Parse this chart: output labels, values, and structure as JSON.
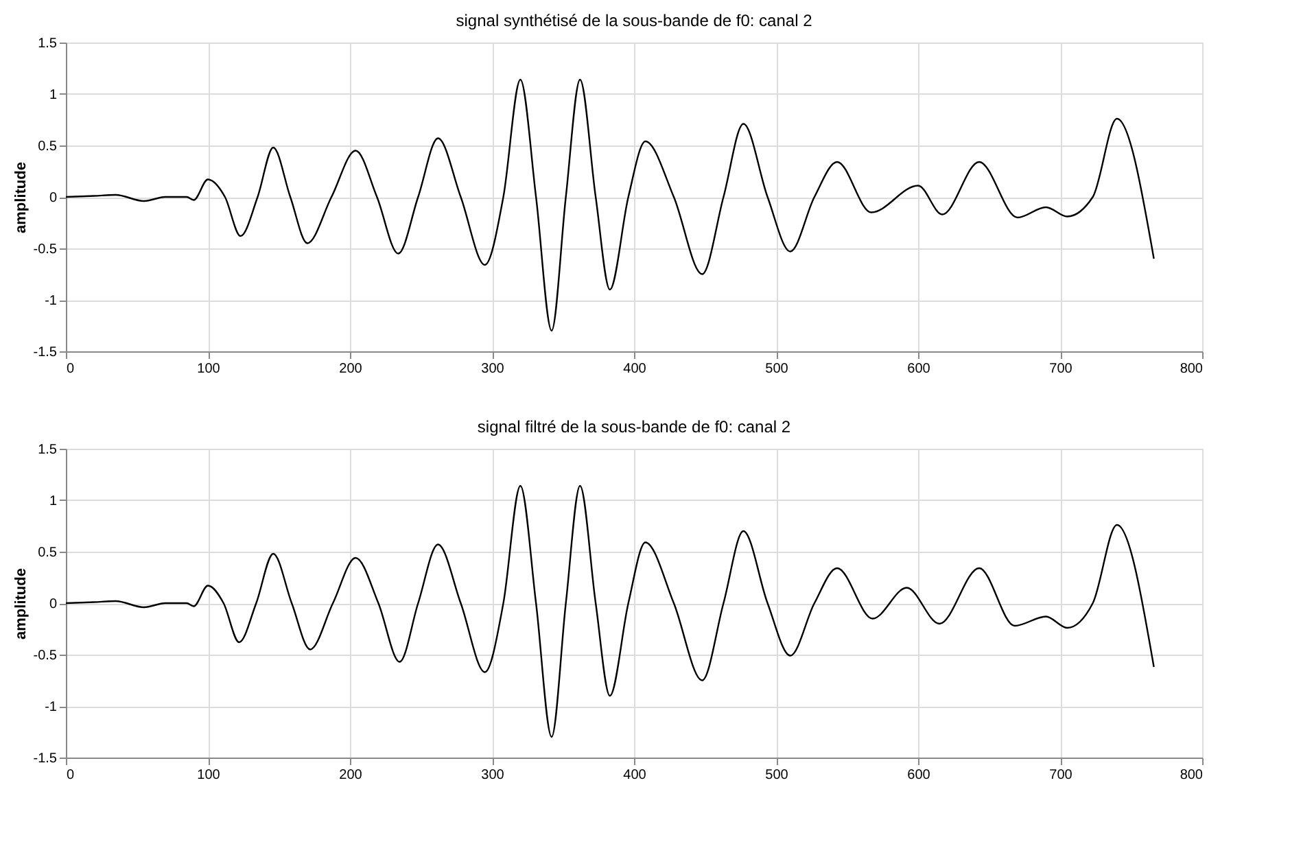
{
  "chart_data": [
    {
      "type": "line",
      "title": "signal synthétisé de la sous-bande de f0: canal 2",
      "ylabel": "amplitude",
      "xlim": [
        0,
        800
      ],
      "ylim": [
        -1.5,
        1.5
      ],
      "xticks": [
        0,
        100,
        200,
        300,
        400,
        500,
        600,
        700,
        800
      ],
      "yticks": [
        -1.5,
        -1,
        -0.5,
        0,
        0.5,
        1,
        1.5
      ],
      "grid": true,
      "x": [
        0,
        20,
        35,
        55,
        70,
        85,
        90,
        100,
        112,
        123,
        135,
        146,
        158,
        170,
        187,
        204,
        219,
        234,
        248,
        262,
        278,
        295,
        308,
        320,
        331,
        342,
        352,
        362,
        373,
        383,
        396,
        408,
        428,
        448,
        463,
        477,
        494,
        510,
        527,
        543,
        567,
        600,
        617,
        643,
        670,
        690,
        705,
        723,
        740,
        766
      ],
      "series": [
        {
          "color": "#000000",
          "values": [
            0,
            0.01,
            0.02,
            -0.04,
            0,
            0,
            -0.03,
            0.17,
            0,
            -0.38,
            0,
            0.48,
            0,
            -0.45,
            0,
            0.45,
            0,
            -0.55,
            0,
            0.57,
            0,
            -0.66,
            0,
            1.14,
            0,
            -1.3,
            0,
            1.14,
            0,
            -0.9,
            0,
            0.54,
            0,
            -0.75,
            0,
            0.71,
            0,
            -0.53,
            0,
            0.34,
            -0.15,
            0.11,
            -0.17,
            0.34,
            -0.2,
            -0.1,
            -0.19,
            0,
            0.76,
            -0.6
          ]
        }
      ]
    },
    {
      "type": "line",
      "title": "signal filtré de la sous-bande de f0: canal 2",
      "ylabel": "amplitude",
      "xlim": [
        0,
        800
      ],
      "ylim": [
        -1.5,
        1.5
      ],
      "xticks": [
        0,
        100,
        200,
        300,
        400,
        500,
        600,
        700,
        800
      ],
      "yticks": [
        -1.5,
        -1,
        -0.5,
        0,
        0.5,
        1,
        1.5
      ],
      "grid": true,
      "x": [
        0,
        20,
        35,
        55,
        70,
        85,
        90,
        100,
        111,
        122,
        134,
        146,
        159,
        172,
        188,
        204,
        220,
        235,
        248,
        262,
        278,
        295,
        308,
        320,
        331,
        342,
        352,
        362,
        373,
        383,
        396,
        408,
        428,
        448,
        463,
        477,
        494,
        510,
        527,
        543,
        568,
        592,
        615,
        643,
        668,
        690,
        705,
        723,
        740,
        766
      ],
      "series": [
        {
          "color": "#000000",
          "values": [
            0,
            0.01,
            0.02,
            -0.04,
            0,
            0,
            -0.03,
            0.17,
            0,
            -0.38,
            0,
            0.48,
            0,
            -0.45,
            0,
            0.44,
            0,
            -0.57,
            0,
            0.57,
            0,
            -0.67,
            0,
            1.14,
            0,
            -1.3,
            0,
            1.14,
            0,
            -0.9,
            0,
            0.59,
            0,
            -0.75,
            0,
            0.7,
            0,
            -0.51,
            0,
            0.34,
            -0.15,
            0.15,
            -0.2,
            0.34,
            -0.22,
            -0.13,
            -0.24,
            0,
            0.76,
            -0.62
          ]
        }
      ]
    }
  ]
}
